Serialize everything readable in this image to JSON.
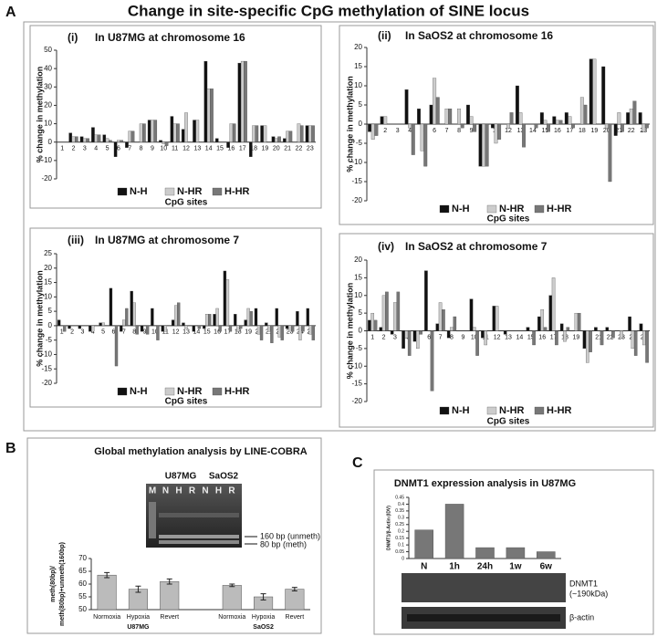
{
  "figure": {
    "title": "Change in site-specific CpG methylation of SINE locus",
    "panel_labels": [
      "A",
      "B",
      "C"
    ]
  },
  "gel": {
    "cell_lines": [
      "U87MG",
      "SaOS2"
    ],
    "lanes": [
      "M",
      "N",
      "H",
      "R",
      "N",
      "H",
      "R"
    ],
    "bands": [
      "160 bp (unmeth)",
      "80 bp (meth)"
    ]
  },
  "blot": {
    "labels": [
      "DNMT1",
      "(~190kDa)",
      "β-actin"
    ]
  },
  "chart_data": [
    {
      "type": "bar",
      "panel": "(i)",
      "title": "In U87MG at chromosome 16",
      "xlabel": "CpG sites",
      "ylabel": "% change in methylation",
      "categories": [
        "1",
        "2",
        "3",
        "4",
        "5",
        "6",
        "7",
        "8",
        "9",
        "10",
        "11",
        "12",
        "13",
        "14",
        "15",
        "16",
        "17",
        "18",
        "19",
        "20",
        "21",
        "22",
        "23"
      ],
      "series": [
        {
          "name": "N-H",
          "color": "#111111",
          "values": [
            0,
            5,
            3,
            8,
            4,
            -8,
            -3,
            0,
            12,
            1,
            14,
            7,
            12,
            44,
            2,
            -3,
            43,
            -8,
            9,
            3,
            2,
            0,
            9
          ]
        },
        {
          "name": "N-HR",
          "color": "#cccccc",
          "values": [
            0,
            3,
            2,
            4,
            2,
            1,
            6,
            10,
            12,
            -1,
            10,
            16,
            12,
            29,
            0,
            10,
            44,
            9,
            9,
            2,
            6,
            10,
            9
          ]
        },
        {
          "name": "H-HR",
          "color": "#777777",
          "values": [
            0,
            3,
            2,
            4,
            1,
            1,
            6,
            10,
            12,
            -2,
            10,
            0,
            0,
            29,
            0,
            10,
            44,
            9,
            0,
            3,
            6,
            9,
            9
          ]
        }
      ],
      "ylim": [
        -20,
        50
      ],
      "yticks": [
        -20,
        -10,
        0,
        10,
        20,
        30,
        40,
        50
      ],
      "legend": "bottom"
    },
    {
      "type": "bar",
      "panel": "(ii)",
      "title": "In SaOS2 at chromosome 16",
      "xlabel": "CpG sites",
      "ylabel": "% change in methylation",
      "categories": [
        "1",
        "2",
        "3",
        "4",
        "5",
        "6",
        "7",
        "8",
        "9",
        "10",
        "11",
        "12",
        "13",
        "14",
        "15",
        "16",
        "17",
        "18",
        "19",
        "20",
        "21",
        "22",
        "23"
      ],
      "series": [
        {
          "name": "N-H",
          "color": "#111111",
          "values": [
            -2,
            2,
            0,
            9,
            4,
            5,
            0,
            0,
            5,
            -11,
            -1,
            0,
            10,
            0,
            3,
            2,
            3,
            0,
            17,
            15,
            -3,
            3,
            3
          ]
        },
        {
          "name": "N-HR",
          "color": "#cccccc",
          "values": [
            -4,
            2,
            0,
            -1,
            -7,
            12,
            4,
            4,
            2,
            -11,
            -5,
            -1,
            3,
            0,
            1,
            1,
            2,
            7,
            17,
            -1,
            3,
            4,
            -2
          ]
        },
        {
          "name": "H-HR",
          "color": "#777777",
          "values": [
            -3,
            0,
            0,
            -8,
            -11,
            7,
            4,
            -1,
            -2,
            -11,
            -4,
            3,
            -6,
            -1,
            -2,
            1,
            -1,
            5,
            0,
            -15,
            -2,
            6,
            -1
          ]
        }
      ],
      "ylim": [
        -20,
        20
      ],
      "yticks": [
        -20,
        -15,
        -10,
        -5,
        0,
        5,
        10,
        15,
        20
      ],
      "legend": "bottom"
    },
    {
      "type": "bar",
      "panel": "(iii)",
      "title": "In U87MG at chromosome 7",
      "xlabel": "CpG sites",
      "ylabel": "% change in methylation",
      "categories": [
        "1",
        "2",
        "3",
        "4",
        "5",
        "6",
        "7",
        "8",
        "9",
        "10",
        "11",
        "12",
        "13",
        "14",
        "15",
        "16",
        "17",
        "18",
        "19",
        "20",
        "21",
        "22",
        "23",
        "24",
        "25"
      ],
      "series": [
        {
          "name": "N-H",
          "color": "#111111",
          "values": [
            2,
            -1,
            -1,
            -2,
            1,
            13,
            -2,
            12,
            -2,
            6,
            -2,
            2,
            1,
            -2,
            -1,
            4,
            19,
            4,
            2,
            6,
            1,
            6,
            -1,
            5,
            6
          ]
        },
        {
          "name": "N-HR",
          "color": "#cccccc",
          "values": [
            0,
            0,
            0,
            -2,
            1,
            0,
            2,
            8,
            0,
            0,
            -2,
            7,
            -1,
            0,
            4,
            6,
            16,
            -2,
            6,
            -3,
            -2,
            -4,
            -2,
            -5,
            -3
          ]
        },
        {
          "name": "H-HR",
          "color": "#777777",
          "values": [
            -2,
            0,
            0,
            0,
            0,
            -14,
            6,
            -3,
            -3,
            -5,
            0,
            8,
            0,
            -1,
            4,
            -2,
            -2,
            -1,
            5,
            -5,
            -6,
            -5,
            -2,
            -2,
            -5
          ]
        }
      ],
      "ylim": [
        -20,
        25
      ],
      "yticks": [
        -20,
        -15,
        -10,
        -5,
        0,
        5,
        10,
        15,
        20,
        25
      ],
      "legend": "bottom"
    },
    {
      "type": "bar",
      "panel": "(iv)",
      "title": "In SaOS2 at chromosome 7",
      "xlabel": "CpG sites",
      "ylabel": "% change in methylation",
      "categories": [
        "1",
        "2",
        "3",
        "4",
        "5",
        "6",
        "7",
        "8",
        "9",
        "10",
        "11",
        "12",
        "13",
        "14",
        "15",
        "16",
        "17",
        "18",
        "19",
        "20",
        "21",
        "22",
        "23",
        "24",
        "25"
      ],
      "series": [
        {
          "name": "N-H",
          "color": "#111111",
          "values": [
            3,
            1,
            -1,
            -5,
            -3,
            17,
            2,
            -2,
            0,
            9,
            -2,
            7,
            -1,
            0,
            1,
            4,
            10,
            2,
            0,
            -5,
            1,
            1,
            0,
            4,
            2
          ]
        },
        {
          "name": "N-HR",
          "color": "#cccccc",
          "values": [
            5,
            10,
            8,
            -2,
            -5,
            0,
            8,
            1,
            0,
            1,
            -4,
            7,
            0,
            0,
            0,
            6,
            15,
            -3,
            5,
            -9,
            0,
            0,
            -2,
            -5,
            -4
          ]
        },
        {
          "name": "H-HR",
          "color": "#777777",
          "values": [
            3,
            11,
            11,
            -7,
            -1,
            -17,
            6,
            4,
            0,
            -7,
            0,
            0,
            0,
            0,
            -4,
            1,
            -4,
            1,
            5,
            -6,
            -4,
            -2,
            0,
            -7,
            -9
          ]
        }
      ],
      "ylim": [
        -20,
        20
      ],
      "yticks": [
        -20,
        -15,
        -10,
        -5,
        0,
        5,
        10,
        15,
        20
      ],
      "legend": "bottom"
    },
    {
      "type": "bar",
      "title": "Global methylation analysis by LINE-COBRA",
      "ylabel": [
        "meth(80bp)/",
        "meth(80bp)+unmeth(160bp)"
      ],
      "categories": [
        "Normoxia",
        "Hypoxia",
        "Revert",
        "Normoxia",
        "Hypoxia",
        "Revert"
      ],
      "groups": [
        "U87MG",
        "SaOS2"
      ],
      "values": [
        63.5,
        58,
        61,
        59.5,
        55,
        58
      ],
      "errors": [
        1,
        1.2,
        1,
        0.5,
        1.2,
        0.7
      ],
      "color": "#bbbbbb",
      "ylim": [
        50,
        70
      ],
      "yticks": [
        50,
        55,
        60,
        65,
        70
      ]
    },
    {
      "type": "bar",
      "title": "DNMT1 expression analysis in U87MG",
      "ylabel": "DNMT1/β-Actin (IDV)",
      "categories": [
        "N",
        "1h",
        "24h",
        "1w",
        "6w"
      ],
      "values": [
        0.21,
        0.4,
        0.08,
        0.08,
        0.05
      ],
      "color": "#777777",
      "ylim": [
        0,
        0.45
      ],
      "yticks": [
        0,
        0.05,
        0.1,
        0.15,
        0.2,
        0.25,
        0.3,
        0.35,
        0.4,
        0.45
      ]
    }
  ]
}
